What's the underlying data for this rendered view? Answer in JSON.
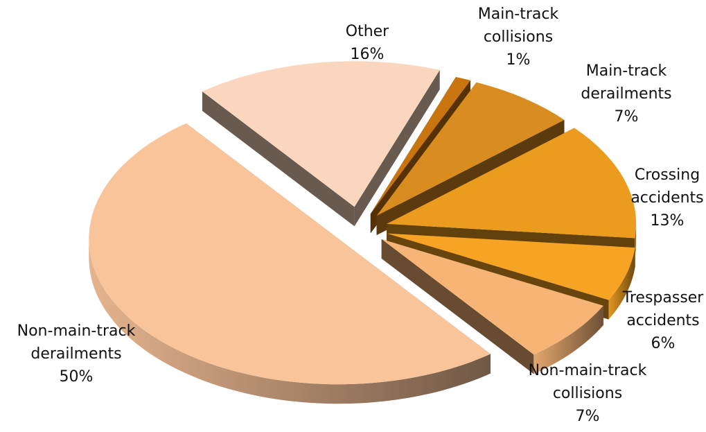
{
  "chart_data": {
    "type": "pie",
    "title": "",
    "style": "3d-exploded",
    "slices": [
      {
        "label_lines": [
          "Main-track",
          "collisions"
        ],
        "percent_label": "1%",
        "value": 1,
        "color": "#c8740f"
      },
      {
        "label_lines": [
          "Main-track",
          "derailments"
        ],
        "percent_label": "7%",
        "value": 7,
        "color": "#d98c1f"
      },
      {
        "label_lines": [
          "Crossing",
          "accidents"
        ],
        "percent_label": "13%",
        "value": 13,
        "color": "#eb9b1d"
      },
      {
        "label_lines": [
          "Trespasser",
          "accidents"
        ],
        "percent_label": "6%",
        "value": 6,
        "color": "#f7a323"
      },
      {
        "label_lines": [
          "Non-main-track",
          "collisions"
        ],
        "percent_label": "7%",
        "value": 7,
        "color": "#f6b477"
      },
      {
        "label_lines": [
          "Non-main-track",
          "derailments"
        ],
        "percent_label": "50%",
        "value": 50,
        "color": "#f9c49a"
      },
      {
        "label_lines": [
          "Other"
        ],
        "percent_label": "16%",
        "value": 16,
        "color": "#fad6be"
      }
    ]
  }
}
